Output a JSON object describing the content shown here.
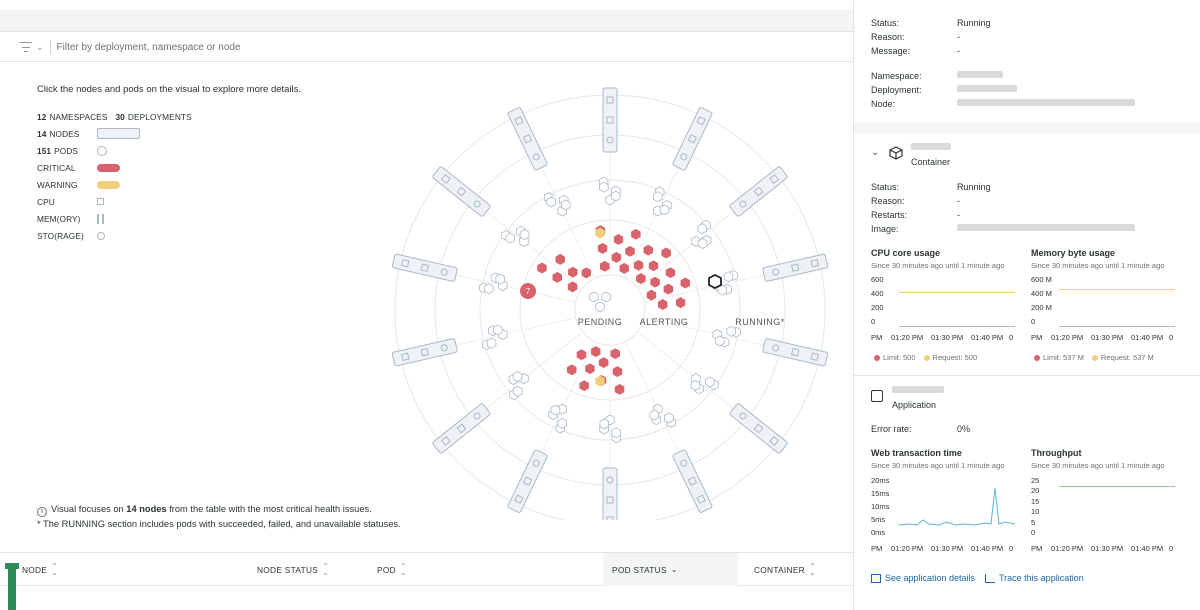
{
  "filter": {
    "placeholder": "Filter by deployment, namespace or node"
  },
  "intro": "Click the nodes and pods on the visual to explore more details.",
  "legend": {
    "namespaces_count": "12",
    "namespaces_label": "NAMESPACES",
    "deployments_count": "30",
    "deployments_label": "DEPLOYMENTS",
    "nodes_count": "14",
    "nodes_label": "NODES",
    "pods_count": "151",
    "pods_label": "PODS",
    "critical": "CRITICAL",
    "warning": "WARNING",
    "cpu": "CPU",
    "memory": "MEM(ORY)",
    "storage": "STO(RAGE)"
  },
  "colors": {
    "critical": "#d9636b",
    "warning": "#f0cf78",
    "pod_outline": "#aab8c7",
    "node_fill": "#eef2f6",
    "accent_link": "#1d66a8"
  },
  "visual": {
    "pending": "PENDING",
    "alerting": "ALERTING",
    "running": "RUNNING*",
    "cluster_badge": "7",
    "critical_pod_count": 36,
    "warning_pod_count": 2
  },
  "notes": {
    "focus_prefix": "Visual focuses on ",
    "focus_bold": "14 nodes",
    "focus_suffix": " from the table with the most critical health issues.",
    "running_note": "* The RUNNING section includes pods with succeeded, failed, and unavailable statuses."
  },
  "table": {
    "headers": [
      "NODE",
      "NODE STATUS",
      "POD",
      "POD STATUS",
      "CONTAINER"
    ]
  },
  "pod_info": {
    "status_label": "Status:",
    "status_value": "Running",
    "reason_label": "Reason:",
    "reason_value": "-",
    "message_label": "Message:",
    "message_value": "-",
    "namespace_label": "Namespace:",
    "deployment_label": "Deployment:",
    "node_label": "Node:"
  },
  "container": {
    "type_label": "Container",
    "status_label": "Status:",
    "status_value": "Running",
    "reason_label": "Reason:",
    "reason_value": "-",
    "restarts_label": "Restarts:",
    "restarts_value": "-",
    "image_label": "Image:",
    "cpu": {
      "title": "CPU core usage",
      "subtitle": "Since 30 minutes ago until 1 minute ago",
      "y_ticks": [
        "600",
        "400",
        "200",
        "0"
      ],
      "x_ticks": [
        "PM",
        "01:20 PM",
        "01:30 PM",
        "01:40 PM",
        "0"
      ],
      "limit_label": "Limit: 500",
      "request_label": "Request: 500"
    },
    "memory": {
      "title": "Memory byte usage",
      "subtitle": "Since 30 minutes ago until 1 minute ago",
      "y_ticks": [
        "600 M",
        "400 M",
        "200 M",
        "0"
      ],
      "x_ticks": [
        "PM",
        "01:20 PM",
        "01:30 PM",
        "01:40 PM",
        "0"
      ],
      "limit_label": "Limit: 537 M",
      "request_label": "Request: 537 M"
    }
  },
  "application": {
    "type_label": "Application",
    "error_rate_label": "Error rate:",
    "error_rate_value": "0%",
    "web": {
      "title": "Web transaction time",
      "subtitle": "Since 30 minutes ago until 1 minute ago",
      "y_ticks": [
        "20ms",
        "15ms",
        "10ms",
        "5ms",
        "0ms"
      ],
      "x_ticks": [
        "PM",
        "01:20 PM",
        "01:30 PM",
        "01:40 PM",
        "0"
      ]
    },
    "throughput": {
      "title": "Throughput",
      "subtitle": "Since 30 minutes ago until 1 minute ago",
      "y_ticks": [
        "25",
        "20",
        "15",
        "10",
        "5",
        "0"
      ],
      "x_ticks": [
        "PM",
        "01:20 PM",
        "01:30 PM",
        "01:40 PM",
        "0"
      ]
    },
    "see_details": "See application details",
    "trace": "Trace this application"
  }
}
